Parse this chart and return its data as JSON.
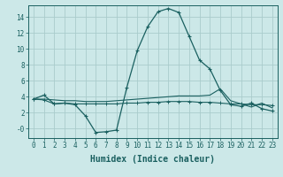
{
  "title": "",
  "xlabel": "Humidex (Indice chaleur)",
  "bg_color": "#cce8e8",
  "grid_color": "#aacccc",
  "line_color": "#1a6060",
  "xlim": [
    -0.5,
    23.5
  ],
  "ylim": [
    -1.2,
    15.5
  ],
  "xticks": [
    0,
    1,
    2,
    3,
    4,
    5,
    6,
    7,
    8,
    9,
    10,
    11,
    12,
    13,
    14,
    15,
    16,
    17,
    18,
    19,
    20,
    21,
    22,
    23
  ],
  "yticks": [
    0,
    2,
    4,
    6,
    8,
    10,
    12,
    14
  ],
  "ytick_labels": [
    "-0",
    "2",
    "4",
    "6",
    "8",
    "10",
    "12",
    "14"
  ],
  "line1_x": [
    0,
    1,
    2,
    3,
    4,
    5,
    6,
    7,
    8,
    9,
    10,
    11,
    12,
    13,
    14,
    15,
    16,
    17,
    18,
    19,
    20,
    21,
    22,
    23
  ],
  "line1_y": [
    3.7,
    4.2,
    3.1,
    3.2,
    3.0,
    1.6,
    -0.5,
    -0.4,
    -0.2,
    5.2,
    9.8,
    12.8,
    14.7,
    15.1,
    14.6,
    11.6,
    8.6,
    7.5,
    4.8,
    3.0,
    2.8,
    3.2,
    2.5,
    2.2
  ],
  "line2_x": [
    0,
    1,
    2,
    3,
    4,
    5,
    6,
    7,
    8,
    9,
    10,
    11,
    12,
    13,
    14,
    15,
    16,
    17,
    18,
    19,
    20,
    21,
    22,
    23
  ],
  "line2_y": [
    3.7,
    3.6,
    3.1,
    3.2,
    3.1,
    3.1,
    3.1,
    3.1,
    3.1,
    3.2,
    3.2,
    3.3,
    3.3,
    3.4,
    3.4,
    3.4,
    3.3,
    3.3,
    3.2,
    3.1,
    3.1,
    3.0,
    3.0,
    2.9
  ],
  "line3_x": [
    0,
    1,
    2,
    3,
    4,
    5,
    6,
    7,
    8,
    9,
    10,
    11,
    12,
    13,
    14,
    15,
    16,
    17,
    18,
    19,
    20,
    21,
    22,
    23
  ],
  "line3_y": [
    3.7,
    3.7,
    3.6,
    3.5,
    3.5,
    3.4,
    3.4,
    3.4,
    3.5,
    3.6,
    3.7,
    3.8,
    3.9,
    4.0,
    4.1,
    4.1,
    4.1,
    4.2,
    5.0,
    3.5,
    3.1,
    2.7,
    3.2,
    2.6
  ],
  "xlabel_fontsize": 7,
  "tick_fontsize": 5.5
}
